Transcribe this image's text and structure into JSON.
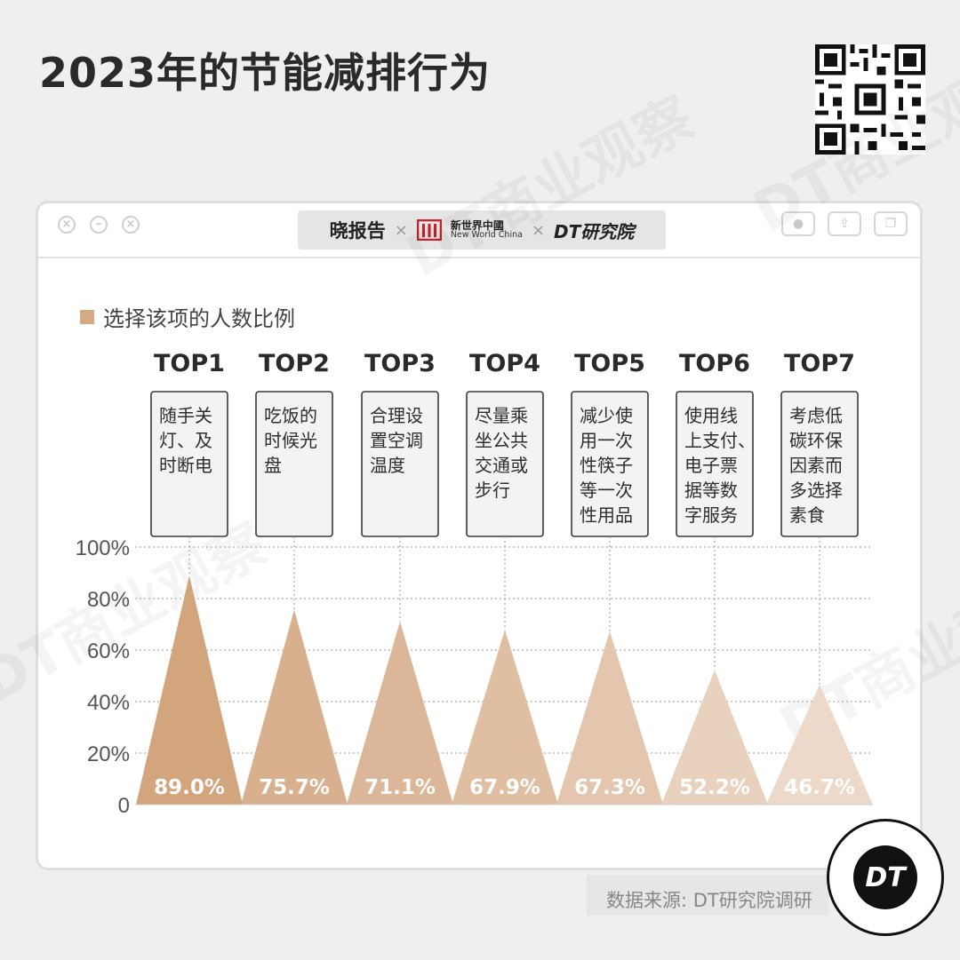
{
  "title": "2023年的节能减排行为",
  "brands": {
    "brand1": "晓报告",
    "brand2_cn": "新世界中國",
    "brand2_en": "New World China",
    "brand3": "DT研究院",
    "separator": "×"
  },
  "window_controls": {
    "close": "×",
    "minimize": "–",
    "maximize": "×"
  },
  "legend": {
    "label": "选择该项的人数比例",
    "color": "#d5ab86"
  },
  "source": "数据来源: DT研究院调研",
  "badge": "DT",
  "watermark": "DT商业观察",
  "colors": {
    "top1": "#d2a57d",
    "top2": "#d8b08d",
    "top3": "#dbb698",
    "top4": "#dfbea2",
    "top5": "#e3c6ad",
    "top6": "#e8d1bd",
    "top7": "#ecd9c9"
  },
  "chart_data": {
    "type": "bar",
    "shape": "triangle",
    "categories": [
      "TOP1",
      "TOP2",
      "TOP3",
      "TOP4",
      "TOP5",
      "TOP6",
      "TOP7"
    ],
    "descriptions": [
      [
        "随手关",
        "灯、及",
        "时断电"
      ],
      [
        "吃饭的",
        "时候光",
        "盘"
      ],
      [
        "合理设",
        "置空调",
        "温度"
      ],
      [
        "尽量乘",
        "坐公共",
        "交通或",
        "步行"
      ],
      [
        "减少使",
        "用一次",
        "性筷子",
        "等一次",
        "性用品"
      ],
      [
        "使用线",
        "上支付、",
        "电子票",
        "据等数",
        "字服务"
      ],
      [
        "考虑低",
        "碳环保",
        "因素而",
        "多选择",
        "素食"
      ]
    ],
    "values": [
      89.0,
      75.7,
      71.1,
      67.9,
      67.3,
      52.2,
      46.7
    ],
    "value_labels": [
      "89.0%",
      "75.7%",
      "71.1%",
      "67.9%",
      "67.3%",
      "52.2%",
      "46.7%"
    ],
    "yticks": [
      "0",
      "20%",
      "40%",
      "60%",
      "80%",
      "100%"
    ],
    "ylim": [
      0,
      100
    ],
    "grid": true
  }
}
